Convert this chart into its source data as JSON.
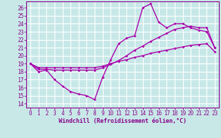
{
  "background_color": "#c8e8e8",
  "grid_color": "#b0d8d8",
  "line_color": "#aa00aa",
  "xlabel": "Windchill (Refroidissement éolien,°C)",
  "xlim": [
    -0.5,
    23.5
  ],
  "ylim": [
    13.5,
    26.8
  ],
  "yticks": [
    14,
    15,
    16,
    17,
    18,
    19,
    20,
    21,
    22,
    23,
    24,
    25,
    26
  ],
  "xticks": [
    0,
    1,
    2,
    3,
    4,
    5,
    6,
    7,
    8,
    9,
    10,
    11,
    12,
    13,
    14,
    15,
    16,
    17,
    18,
    19,
    20,
    21,
    22,
    23
  ],
  "line1_x": [
    0,
    1,
    2,
    3,
    4,
    5,
    6,
    7,
    8,
    9,
    10,
    11,
    12,
    13,
    14,
    15,
    16,
    17,
    18,
    19,
    20,
    21,
    22,
    23
  ],
  "line1_y": [
    19.0,
    18.0,
    18.2,
    17.0,
    16.2,
    15.5,
    15.2,
    15.0,
    14.5,
    17.3,
    19.5,
    21.5,
    22.2,
    22.5,
    26.0,
    26.5,
    24.2,
    23.5,
    24.0,
    24.0,
    23.5,
    23.2,
    23.0,
    21.0
  ],
  "line2_x": [
    0,
    1,
    2,
    3,
    4,
    5,
    6,
    7,
    8,
    9,
    10,
    11,
    12,
    13,
    14,
    15,
    16,
    17,
    18,
    19,
    20,
    21,
    22,
    23
  ],
  "line2_y": [
    19.0,
    18.3,
    18.3,
    18.2,
    18.2,
    18.2,
    18.2,
    18.2,
    18.2,
    18.5,
    18.9,
    19.4,
    20.0,
    20.7,
    21.2,
    21.8,
    22.3,
    22.8,
    23.3,
    23.5,
    23.7,
    23.5,
    23.5,
    21.0
  ],
  "line3_x": [
    0,
    1,
    2,
    3,
    4,
    5,
    6,
    7,
    8,
    9,
    10,
    11,
    12,
    13,
    14,
    15,
    16,
    17,
    18,
    19,
    20,
    21,
    22,
    23
  ],
  "line3_y": [
    19.0,
    18.5,
    18.5,
    18.5,
    18.5,
    18.5,
    18.5,
    18.5,
    18.5,
    18.7,
    19.0,
    19.3,
    19.5,
    19.8,
    20.0,
    20.3,
    20.5,
    20.7,
    20.9,
    21.1,
    21.3,
    21.4,
    21.5,
    20.5
  ],
  "tick_color": "#880088",
  "tick_fontsize": 5.5,
  "xlabel_fontsize": 6.0,
  "spine_color": "#880088"
}
